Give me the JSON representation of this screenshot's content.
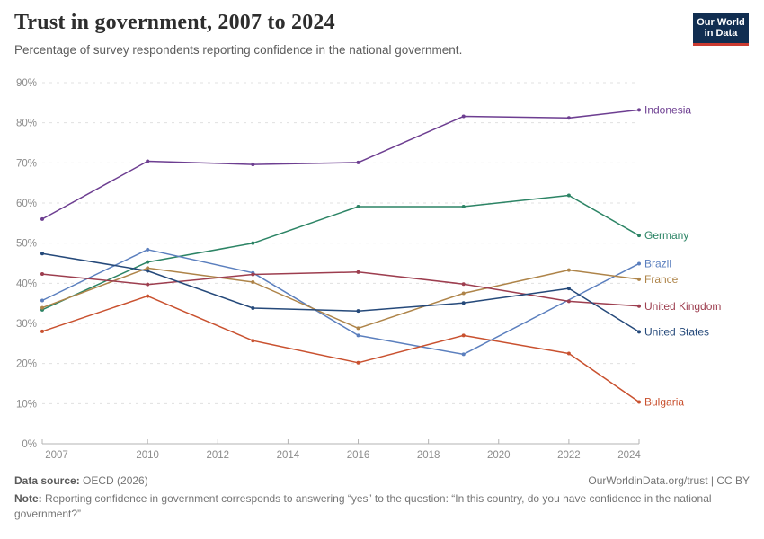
{
  "header": {
    "title": "Trust in government, 2007 to 2024",
    "subtitle": "Percentage of survey respondents reporting confidence in the national government.",
    "logo": {
      "line1": "Our World",
      "line2": "in Data"
    }
  },
  "chart_data": {
    "type": "line",
    "title": "Trust in government, 2007 to 2024",
    "xlabel": "",
    "ylabel": "",
    "xlim": [
      2007,
      2024
    ],
    "ylim": [
      0,
      90
    ],
    "grid": "horizontal-dashed",
    "legend_position": "end-of-line labels, right side",
    "x_tick_labels": [
      "2007",
      "2010",
      "2012",
      "2014",
      "2016",
      "2018",
      "2020",
      "2022",
      "2024"
    ],
    "y_tick_labels": [
      "0%",
      "10%",
      "20%",
      "30%",
      "40%",
      "50%",
      "60%",
      "70%",
      "80%",
      "90%"
    ],
    "years": [
      2007,
      2010,
      2013,
      2016,
      2019,
      2022,
      2024
    ],
    "series": [
      {
        "name": "Indonesia",
        "color": "#6D3E91",
        "values": [
          56.0,
          70.4,
          69.6,
          70.1,
          81.6,
          81.2,
          83.2
        ]
      },
      {
        "name": "Germany",
        "color": "#2C8465",
        "values": [
          33.4,
          45.3,
          50.0,
          59.1,
          59.1,
          61.9,
          51.9
        ]
      },
      {
        "name": "Brazil",
        "color": "#5B7FBE",
        "values": [
          35.7,
          48.4,
          42.6,
          27.0,
          22.3,
          null,
          44.9
        ]
      },
      {
        "name": "France",
        "color": "#AE8449",
        "values": [
          33.9,
          43.8,
          40.3,
          28.8,
          37.5,
          43.3,
          41.0
        ]
      },
      {
        "name": "United Kingdom",
        "color": "#9D3E4F",
        "values": [
          42.3,
          39.7,
          42.2,
          42.8,
          39.8,
          35.5,
          34.3
        ]
      },
      {
        "name": "United States",
        "color": "#25497A",
        "values": [
          47.4,
          43.1,
          33.8,
          33.1,
          35.1,
          38.7,
          27.9
        ]
      },
      {
        "name": "Bulgaria",
        "color": "#C9512F",
        "values": [
          28.0,
          36.8,
          25.7,
          20.2,
          27.0,
          22.5,
          10.4
        ]
      }
    ]
  },
  "footer": {
    "source_label": "Data source:",
    "source_value": " OECD (2026)",
    "rights": "OurWorldinData.org/trust | CC BY",
    "note_label": "Note:",
    "note_value": " Reporting confidence in government corresponds to answering “yes” to the question: “In this country, do you have confidence in the national government?”"
  }
}
